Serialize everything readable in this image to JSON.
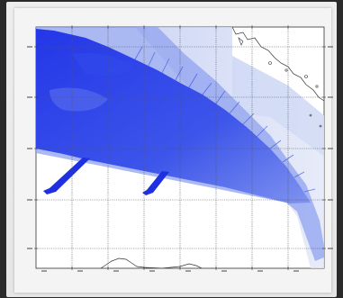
{
  "map": {
    "title": "",
    "graticule": {
      "columns": 8,
      "rows": 6,
      "visible": true
    },
    "colors": {
      "deep": "#1a2fe6",
      "mid": "#4a62ea",
      "light": "#b4c2f2",
      "pale": "#d7def5",
      "grid": "#555555",
      "coast": "#333333",
      "background": "#ffffff"
    },
    "layers": [
      {
        "name": "coverage-dense",
        "color": "deep"
      },
      {
        "name": "coverage-light",
        "color": "light"
      },
      {
        "name": "coastline",
        "color": "coast"
      }
    ]
  }
}
